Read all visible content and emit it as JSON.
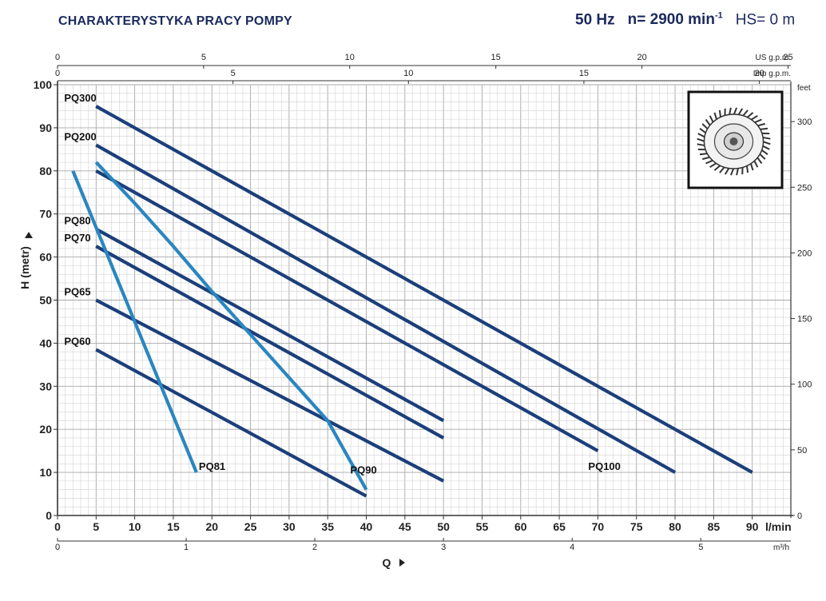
{
  "header": {
    "title": "CHARAKTERYSTYKA PRACY POMPY",
    "freq": "50 Hz",
    "speed_prefix": "n= 2900 min",
    "speed_exp": "-1",
    "hs": "HS= 0 m"
  },
  "chart_data": {
    "type": "line",
    "ylabel": "H (metr)",
    "xlabel": "Q",
    "xlim": [
      0,
      95
    ],
    "ylim": [
      0,
      100
    ],
    "x_unit": "l/min",
    "x_ticks": [
      0,
      5,
      10,
      15,
      20,
      25,
      30,
      35,
      40,
      45,
      50,
      55,
      60,
      65,
      70,
      75,
      80,
      85,
      90
    ],
    "y_ticks": [
      0,
      10,
      20,
      30,
      40,
      50,
      60,
      70,
      80,
      90,
      100
    ],
    "top_axis_usgpm": {
      "unit": "US g.p.m.",
      "ticks": [
        0,
        5,
        10,
        15,
        20,
        25
      ]
    },
    "top_axis_impgpm": {
      "unit": "Imp g.p.m.",
      "ticks": [
        0,
        5,
        10,
        15,
        20
      ]
    },
    "right_axis_feet": {
      "unit": "feet",
      "ticks": [
        0,
        50,
        100,
        150,
        200,
        250,
        300
      ]
    },
    "bottom_axis_m3h": {
      "unit": "m³/h",
      "ticks": [
        0,
        1,
        2,
        3,
        4,
        5
      ]
    },
    "grid": true,
    "colors": {
      "dark": "#1b3f7a",
      "light": "#2a86c0",
      "grid": "#bfbfbf",
      "axis": "#333333"
    },
    "series": [
      {
        "name": "PQ300",
        "color": "dark",
        "label_side": "left",
        "points": [
          [
            5,
            95
          ],
          [
            90,
            10
          ]
        ]
      },
      {
        "name": "PQ200",
        "color": "dark",
        "label_side": "left",
        "points": [
          [
            5,
            86
          ],
          [
            80,
            10
          ]
        ]
      },
      {
        "name": "PQ100",
        "color": "dark",
        "label_side": "end",
        "points": [
          [
            5,
            80
          ],
          [
            70,
            15
          ]
        ]
      },
      {
        "name": "PQ80",
        "color": "dark",
        "label_side": "left",
        "points": [
          [
            5,
            66.5
          ],
          [
            50,
            22
          ]
        ]
      },
      {
        "name": "PQ70",
        "color": "dark",
        "label_side": "left",
        "points": [
          [
            5,
            62.5
          ],
          [
            50,
            18
          ]
        ]
      },
      {
        "name": "PQ65",
        "color": "dark",
        "label_side": "left",
        "points": [
          [
            5,
            50
          ],
          [
            50,
            8
          ]
        ]
      },
      {
        "name": "PQ60",
        "color": "dark",
        "label_side": "left",
        "points": [
          [
            5,
            38.5
          ],
          [
            40,
            4.5
          ]
        ]
      },
      {
        "name": "PQ81",
        "color": "light",
        "label_side": "end",
        "points": [
          [
            2,
            80
          ],
          [
            18,
            10
          ]
        ]
      },
      {
        "name": "PQ90",
        "color": "light",
        "label_side": "end",
        "points": [
          [
            5,
            82
          ],
          [
            10,
            72.5
          ],
          [
            15,
            62.5
          ],
          [
            20,
            52
          ],
          [
            25,
            42
          ],
          [
            30,
            32
          ],
          [
            35,
            22
          ],
          [
            40,
            6
          ]
        ]
      }
    ]
  }
}
